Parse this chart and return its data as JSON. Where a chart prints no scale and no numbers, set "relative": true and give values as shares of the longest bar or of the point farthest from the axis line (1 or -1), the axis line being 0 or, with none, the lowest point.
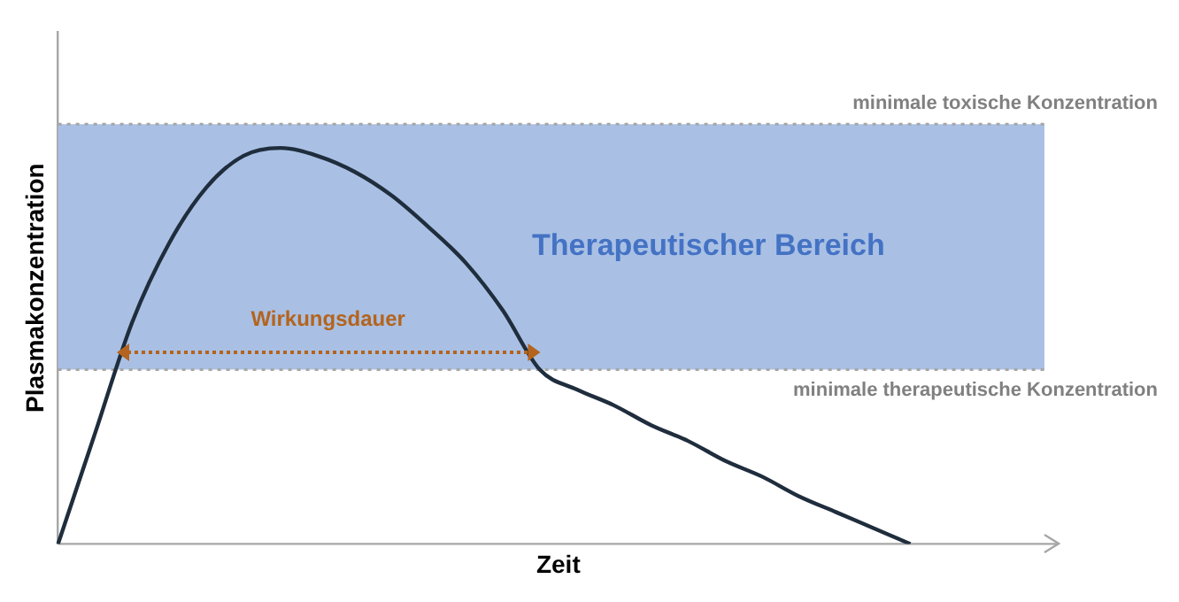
{
  "chart_data": {
    "type": "line",
    "relative": true,
    "xlabel": "Zeit",
    "ylabel": "Plasmakonzentration",
    "categories": [
      null,
      null,
      null,
      null,
      null,
      null,
      null,
      null,
      null,
      null,
      null,
      null,
      null,
      null,
      null,
      null,
      null,
      null,
      null,
      null,
      null,
      null,
      null,
      null,
      null,
      null,
      null,
      null
    ],
    "series": [
      {
        "color": "#1f2d3d",
        "values": [
          0,
          0.28,
          0.56,
          0.76,
          0.9,
          0.98,
          1,
          0.98,
          0.94,
          0.88,
          0.8,
          0.71,
          0.59,
          0.44,
          0.39,
          0.35,
          0.3,
          0.26,
          0.21,
          0.17,
          0.12,
          0.08,
          0.04,
          0,
          null,
          null,
          null,
          null
        ]
      }
    ],
    "bands": [
      {
        "axis": "y",
        "from": 0.44,
        "to": 1.06,
        "label": "Therapeutischer Bereich",
        "color": "#a9c0e4"
      }
    ],
    "ref_lines": [
      {
        "axis": "y",
        "value": 1.06,
        "label": "minimale toxische Konzentration",
        "color": "#a6a6a6",
        "line_style": "dotted"
      },
      {
        "axis": "y",
        "value": 0.44,
        "label": "minimale therapeutische Konzentration",
        "color": "#a6a6a6",
        "line_style": "dotted"
      }
    ],
    "annotations": [
      "Wirkungsdauer"
    ],
    "legend": false,
    "grid": false,
    "tick_labels": false,
    "marker": "none",
    "line_style": "solid"
  }
}
